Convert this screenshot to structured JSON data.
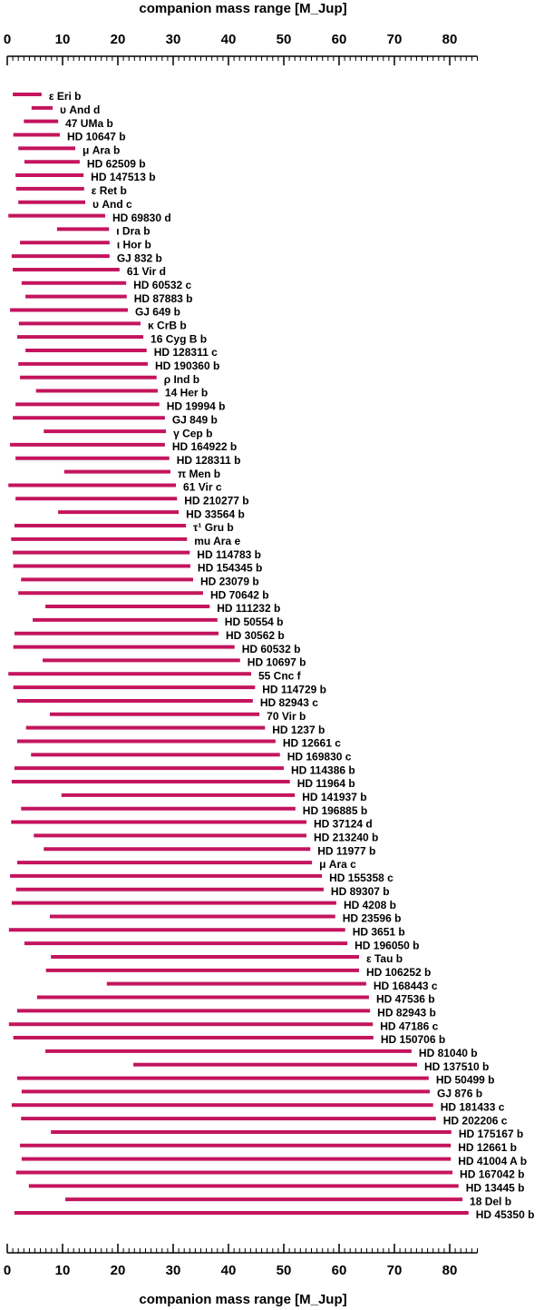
{
  "chart_data": {
    "type": "range_bar",
    "title": "companion mass range [M_Jup]",
    "xlabel": "companion mass range [M_Jup]",
    "xlim": [
      0,
      85
    ],
    "xticks": [
      0,
      10,
      20,
      30,
      40,
      50,
      60,
      70,
      80
    ],
    "minor_tick_step": 1,
    "color": "#c4145e",
    "categories": [
      "ε Eri b",
      "υ And d",
      "47 UMa b",
      "HD 10647 b",
      "μ Ara b",
      "HD 62509 b",
      "HD 147513 b",
      "ε Ret b",
      "υ And c",
      "HD 69830 d",
      "ι Dra b",
      "ι Hor b",
      "GJ 832 b",
      "61 Vir d",
      "HD 60532 c",
      "HD 87883 b",
      "GJ 649 b",
      "κ CrB b",
      "16 Cyg B b",
      "HD 128311 c",
      "HD 190360 b",
      "ρ Ind b",
      "14 Her b",
      "HD 19994 b",
      "GJ 849 b",
      "γ Cep b",
      "HD 164922 b",
      "HD 128311 b",
      "π Men b",
      "61 Vir c",
      "HD 210277 b",
      "HD 33564 b",
      "τ¹ Gru b",
      "mu Ara e",
      "HD 114783 b",
      "HD 154345 b",
      "HD 23079 b",
      "HD 70642 b",
      "HD 111232 b",
      "HD 50554 b",
      "HD 30562 b",
      "HD 60532 b",
      "HD 10697 b",
      "55 Cnc f",
      "HD 114729 b",
      "HD 82943 c",
      "70 Vir b",
      "HD 1237 b",
      "HD 12661 c",
      "HD 169830 c",
      "HD 114386 b",
      "HD 11964 b",
      "HD 141937 b",
      "HD 196885 b",
      "HD 37124 d",
      "HD 213240 b",
      "HD 11977 b",
      "μ Ara c",
      "HD 155358 c",
      "HD 89307 b",
      "HD 4208 b",
      "HD 23596 b",
      "HD 3651 b",
      "HD 196050 b",
      "ε Tau b",
      "HD 106252 b",
      "HD 168443 c",
      "HD 47536 b",
      "HD 82943 b",
      "HD 47186 c",
      "HD 150706 b",
      "HD 81040 b",
      "HD 137510 b",
      "HD 50499 b",
      "GJ 876 b",
      "HD 181433 c",
      "HD 202206 c",
      "HD 175167 b",
      "HD 12661 b",
      "HD 41004 A b",
      "HD 167042 b",
      "HD 13445 b",
      "18 Del b",
      "HD 45350 b"
    ],
    "low": [
      1.0,
      4.4,
      3.0,
      1.1,
      2.0,
      3.1,
      1.5,
      1.6,
      2.0,
      0.2,
      9.0,
      2.3,
      0.8,
      1.0,
      2.6,
      3.3,
      0.5,
      2.1,
      1.8,
      3.3,
      2.0,
      2.3,
      5.2,
      1.5,
      1.0,
      6.6,
      0.5,
      1.5,
      10.3,
      0.2,
      1.5,
      9.2,
      1.3,
      0.7,
      1.0,
      1.1,
      2.5,
      2.0,
      6.9,
      4.6,
      1.3,
      1.1,
      6.4,
      0.2,
      1.1,
      1.8,
      7.7,
      3.4,
      1.8,
      4.3,
      1.3,
      0.8,
      9.8,
      2.5,
      0.7,
      4.8,
      6.6,
      1.8,
      0.5,
      1.6,
      0.8,
      7.7,
      0.3,
      3.1,
      7.9,
      7.0,
      18.0,
      5.4,
      1.8,
      0.3,
      1.1,
      6.9,
      22.8,
      1.8,
      2.6,
      0.8,
      2.5,
      7.9,
      2.3,
      2.6,
      1.6,
      3.9,
      10.5,
      1.3
    ],
    "high": [
      6.2,
      8.2,
      9.2,
      9.5,
      12.3,
      13.1,
      13.8,
      13.9,
      14.1,
      17.7,
      18.4,
      18.5,
      18.5,
      20.3,
      21.5,
      21.6,
      21.8,
      24.1,
      24.6,
      25.2,
      25.4,
      27.0,
      27.2,
      27.5,
      28.5,
      28.7,
      28.5,
      29.3,
      29.5,
      30.5,
      30.7,
      31.0,
      32.3,
      32.5,
      33.0,
      33.1,
      33.6,
      35.4,
      36.6,
      38.0,
      38.2,
      41.1,
      42.1,
      44.1,
      44.8,
      44.4,
      45.6,
      46.6,
      48.5,
      49.3,
      50.0,
      51.1,
      52.0,
      52.1,
      54.1,
      54.1,
      54.8,
      55.1,
      56.9,
      57.2,
      59.5,
      59.3,
      61.1,
      61.5,
      63.6,
      63.6,
      64.9,
      65.4,
      65.6,
      66.1,
      66.2,
      73.1,
      74.1,
      76.2,
      76.4,
      77.0,
      77.5,
      80.3,
      80.2,
      80.2,
      80.5,
      81.6,
      82.3,
      83.4
    ]
  }
}
